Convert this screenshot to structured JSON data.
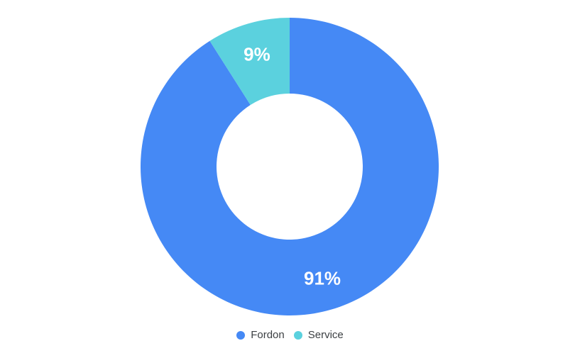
{
  "background_color": "#ffffff",
  "chart_data": {
    "type": "pie",
    "subtype": "donut",
    "title": "",
    "series": [
      {
        "name": "Fordon",
        "value": 91,
        "percent_label": "91%",
        "color": "#4589f5"
      },
      {
        "name": "Service",
        "value": 9,
        "percent_label": "9%",
        "color": "#5bd1de"
      }
    ],
    "start_angle_deg": 0,
    "direction": "clockwise",
    "hole_ratio": 0.49,
    "legend_position": "bottom",
    "slice_label_color": "#ffffff"
  }
}
